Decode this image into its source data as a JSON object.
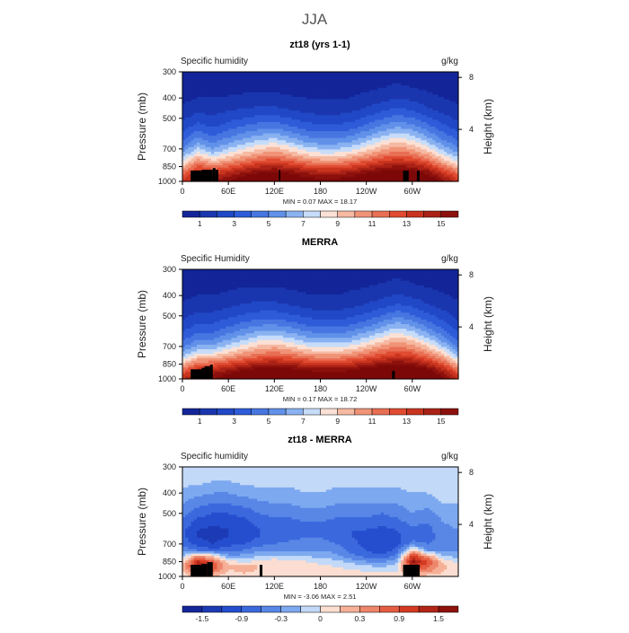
{
  "page_title": "JJA",
  "chart_data": [
    {
      "type": "heatmap",
      "title": "zt18 (yrs 1-1)",
      "left_label": "Specific humidity",
      "units": "g/kg",
      "ylabel": "Pressure (mb)",
      "ylabel_right": "Height (km)",
      "pressure_ticks": [
        "300",
        "400",
        "500",
        "700",
        "850",
        "1000"
      ],
      "height_ticks": [
        "8",
        "4"
      ],
      "lon_ticks": [
        "0",
        "60E",
        "120E",
        "180",
        "120W",
        "60W"
      ],
      "min_text": "MIN =    0.07   MAX =   18.17",
      "colorbar_ticks": [
        "1",
        "3",
        "5",
        "7",
        "9",
        "11",
        "13",
        "15"
      ],
      "colormap": "diverging",
      "range": [
        0,
        16
      ],
      "colorbar_level_count": 16,
      "pressure_levels": [
        300,
        350,
        400,
        450,
        500,
        550,
        600,
        650,
        700,
        750,
        800,
        850,
        900,
        950,
        1000
      ],
      "longitude_knots": [
        0,
        20,
        40,
        60,
        80,
        100,
        120,
        140,
        160,
        180,
        200,
        220,
        240,
        260,
        280,
        300,
        320,
        340,
        360
      ],
      "values": [
        [
          0.3,
          0.3,
          0.3,
          0.4,
          0.4,
          0.4,
          0.4,
          0.3,
          0.3,
          0.3,
          0.3,
          0.3,
          0.4,
          0.5,
          0.6,
          0.5,
          0.4,
          0.4,
          0.3
        ],
        [
          0.5,
          0.5,
          0.6,
          0.6,
          0.7,
          0.7,
          0.7,
          0.6,
          0.5,
          0.5,
          0.5,
          0.6,
          0.7,
          0.9,
          1.1,
          0.9,
          0.7,
          0.6,
          0.5
        ],
        [
          0.8,
          1.0,
          1.0,
          1.1,
          1.2,
          1.3,
          1.3,
          1.1,
          1.0,
          0.9,
          0.9,
          1.0,
          1.3,
          1.6,
          2.0,
          1.7,
          1.3,
          1.0,
          0.8
        ],
        [
          1.2,
          1.6,
          1.5,
          1.8,
          2.0,
          2.2,
          2.2,
          1.9,
          1.6,
          1.5,
          1.5,
          1.7,
          2.1,
          2.6,
          3.1,
          2.8,
          2.1,
          1.6,
          1.2
        ],
        [
          1.8,
          2.5,
          2.2,
          2.6,
          3.0,
          3.3,
          3.4,
          3.0,
          2.5,
          2.3,
          2.3,
          2.6,
          3.2,
          3.9,
          4.5,
          4.1,
          3.2,
          2.4,
          1.8
        ],
        [
          2.5,
          3.5,
          2.9,
          3.6,
          4.1,
          4.6,
          4.8,
          4.2,
          3.6,
          3.3,
          3.3,
          3.6,
          4.4,
          5.3,
          6.0,
          5.5,
          4.4,
          3.3,
          2.5
        ],
        [
          3.3,
          4.6,
          3.8,
          4.6,
          5.3,
          6.0,
          6.3,
          5.5,
          4.8,
          4.4,
          4.4,
          4.8,
          5.7,
          6.7,
          7.5,
          6.9,
          5.7,
          4.3,
          3.3
        ],
        [
          4.2,
          5.8,
          4.8,
          5.8,
          6.6,
          7.4,
          7.8,
          7.0,
          6.1,
          5.6,
          5.6,
          6.1,
          7.1,
          8.2,
          9.0,
          8.4,
          7.0,
          5.4,
          4.2
        ],
        [
          5.2,
          7.2,
          6.0,
          7.1,
          8.0,
          8.9,
          9.4,
          8.6,
          7.6,
          7.0,
          7.0,
          7.6,
          8.6,
          9.7,
          10.5,
          9.9,
          8.5,
          6.6,
          5.2
        ],
        [
          6.4,
          8.8,
          7.5,
          8.6,
          9.6,
          10.5,
          11.0,
          10.2,
          9.2,
          8.6,
          8.6,
          9.2,
          10.2,
          11.3,
          12.0,
          11.5,
          10.1,
          8.0,
          6.4
        ],
        [
          7.8,
          10.6,
          9.2,
          10.3,
          11.3,
          12.2,
          12.7,
          12.0,
          11.0,
          10.4,
          10.4,
          11.0,
          12.0,
          13.0,
          13.6,
          13.2,
          11.8,
          9.6,
          7.8
        ],
        [
          9.4,
          12.4,
          11.0,
          12.1,
          13.1,
          14.0,
          14.4,
          13.8,
          12.9,
          12.3,
          12.3,
          12.9,
          13.8,
          14.7,
          15.2,
          14.9,
          13.6,
          11.4,
          9.4
        ],
        [
          11.0,
          13.8,
          12.8,
          13.8,
          14.8,
          15.6,
          16.0,
          15.5,
          14.7,
          14.1,
          14.1,
          14.7,
          15.5,
          16.3,
          16.8,
          16.5,
          15.3,
          13.1,
          11.0
        ],
        [
          12.4,
          14.6,
          14.2,
          15.2,
          16.2,
          17.0,
          17.4,
          16.9,
          16.1,
          15.6,
          15.6,
          16.1,
          16.9,
          17.6,
          18.0,
          17.8,
          16.6,
          14.6,
          12.4
        ],
        [
          13.4,
          15.0,
          15.0,
          16.0,
          17.0,
          17.8,
          18.0,
          17.6,
          16.9,
          16.4,
          16.4,
          16.9,
          17.6,
          18.1,
          18.2,
          18.1,
          17.4,
          15.5,
          13.4
        ]
      ]
    },
    {
      "type": "heatmap",
      "title": "MERRA",
      "left_label": "Specific Humidity",
      "units": "g/kg",
      "ylabel": "Pressure (mb)",
      "ylabel_right": "Height (km)",
      "pressure_ticks": [
        "300",
        "400",
        "500",
        "700",
        "850",
        "1000"
      ],
      "height_ticks": [
        "8",
        "4"
      ],
      "lon_ticks": [
        "0",
        "60E",
        "120E",
        "180",
        "120W",
        "60W"
      ],
      "min_text": "MIN =    0.17   MAX =   18.72",
      "colorbar_ticks": [
        "1",
        "3",
        "5",
        "7",
        "9",
        "11",
        "13",
        "15"
      ],
      "colormap": "diverging",
      "range": [
        0,
        16
      ],
      "colorbar_level_count": 16,
      "pressure_levels": [
        300,
        350,
        400,
        450,
        500,
        550,
        600,
        650,
        700,
        750,
        800,
        850,
        900,
        950,
        1000
      ],
      "longitude_knots": [
        0,
        20,
        40,
        60,
        80,
        100,
        120,
        140,
        160,
        180,
        200,
        220,
        240,
        260,
        280,
        300,
        320,
        340,
        360
      ],
      "values": [
        [
          0.3,
          0.3,
          0.3,
          0.4,
          0.5,
          0.5,
          0.5,
          0.4,
          0.4,
          0.3,
          0.3,
          0.4,
          0.5,
          0.6,
          0.7,
          0.6,
          0.4,
          0.3,
          0.3
        ],
        [
          0.5,
          0.6,
          0.6,
          0.7,
          0.8,
          0.8,
          0.8,
          0.7,
          0.6,
          0.6,
          0.6,
          0.7,
          0.8,
          1.0,
          1.2,
          1.0,
          0.8,
          0.6,
          0.5
        ],
        [
          0.8,
          1.0,
          1.0,
          1.2,
          1.4,
          1.5,
          1.5,
          1.3,
          1.1,
          1.0,
          1.0,
          1.2,
          1.4,
          1.7,
          2.1,
          1.8,
          1.4,
          1.1,
          0.8
        ],
        [
          1.2,
          1.6,
          1.6,
          1.9,
          2.2,
          2.4,
          2.4,
          2.1,
          1.8,
          1.6,
          1.6,
          1.8,
          2.2,
          2.7,
          3.3,
          2.9,
          2.2,
          1.7,
          1.2
        ],
        [
          1.7,
          2.3,
          2.3,
          2.7,
          3.2,
          3.5,
          3.6,
          3.2,
          2.8,
          2.5,
          2.5,
          2.8,
          3.3,
          4.0,
          4.8,
          4.2,
          3.3,
          2.5,
          1.7
        ],
        [
          2.3,
          3.1,
          3.1,
          3.7,
          4.3,
          4.8,
          5.0,
          4.5,
          3.9,
          3.6,
          3.6,
          3.9,
          4.6,
          5.5,
          6.4,
          5.7,
          4.5,
          3.4,
          2.3
        ],
        [
          3.0,
          4.0,
          4.0,
          4.8,
          5.6,
          6.2,
          6.5,
          5.9,
          5.2,
          4.8,
          4.8,
          5.2,
          6.0,
          7.0,
          8.0,
          7.2,
          5.9,
          4.4,
          3.0
        ],
        [
          3.8,
          5.0,
          5.1,
          6.0,
          6.9,
          7.7,
          8.1,
          7.4,
          6.6,
          6.2,
          6.2,
          6.6,
          7.5,
          8.6,
          9.6,
          8.8,
          7.4,
          5.6,
          3.8
        ],
        [
          4.8,
          6.2,
          6.4,
          7.4,
          8.4,
          9.2,
          9.7,
          9.0,
          8.2,
          7.7,
          7.7,
          8.2,
          9.1,
          10.2,
          11.1,
          10.4,
          9.0,
          7.0,
          4.8
        ],
        [
          6.0,
          7.8,
          8.0,
          9.0,
          10.0,
          10.8,
          11.3,
          10.7,
          9.9,
          9.4,
          9.4,
          9.9,
          10.8,
          11.8,
          12.6,
          12.0,
          10.6,
          8.6,
          6.0
        ],
        [
          7.6,
          9.8,
          9.9,
          10.9,
          11.8,
          12.6,
          13.0,
          12.5,
          11.8,
          11.3,
          11.3,
          11.8,
          12.6,
          13.5,
          14.1,
          13.7,
          12.4,
          10.4,
          7.6
        ],
        [
          9.4,
          11.8,
          11.9,
          12.9,
          13.8,
          14.6,
          15.0,
          14.5,
          13.8,
          13.3,
          13.3,
          13.8,
          14.6,
          15.4,
          15.9,
          15.6,
          14.3,
          12.3,
          9.4
        ],
        [
          11.2,
          13.6,
          13.8,
          14.8,
          15.7,
          16.5,
          16.9,
          16.4,
          15.7,
          15.3,
          15.3,
          15.7,
          16.5,
          17.2,
          17.6,
          17.4,
          16.1,
          14.1,
          11.2
        ],
        [
          12.8,
          14.8,
          15.2,
          16.2,
          17.1,
          17.8,
          18.1,
          17.7,
          17.1,
          16.7,
          16.7,
          17.1,
          17.8,
          18.3,
          18.5,
          18.4,
          17.3,
          15.4,
          12.8
        ],
        [
          13.8,
          15.4,
          16.0,
          17.0,
          17.9,
          18.4,
          18.6,
          18.3,
          17.8,
          17.5,
          17.5,
          17.8,
          18.4,
          18.7,
          18.7,
          18.7,
          17.9,
          16.2,
          13.8
        ]
      ]
    },
    {
      "type": "heatmap",
      "title": "zt18 - MERRA",
      "left_label": "Specific humidity",
      "units": "g/kg",
      "ylabel": "Pressure (mb)",
      "ylabel_right": "Height (km)",
      "pressure_ticks": [
        "300",
        "400",
        "500",
        "700",
        "850",
        "1000"
      ],
      "height_ticks": [
        "8",
        "4"
      ],
      "lon_ticks": [
        "0",
        "60E",
        "120E",
        "180",
        "120W",
        "60W"
      ],
      "min_text": "MIN =   -3.06   MAX =    2.51",
      "colorbar_ticks": [
        "-1.5",
        "-0.9",
        "-0.3",
        "0",
        "0.3",
        "0.9",
        "1.5"
      ],
      "colormap": "diverging",
      "range": [
        -2.1,
        2.1
      ],
      "colorbar_level_count": 14,
      "pressure_levels": [
        300,
        350,
        400,
        450,
        500,
        550,
        600,
        650,
        700,
        750,
        800,
        850,
        900,
        950,
        1000
      ],
      "longitude_knots": [
        0,
        20,
        40,
        60,
        80,
        100,
        120,
        140,
        160,
        180,
        200,
        220,
        240,
        260,
        280,
        300,
        320,
        340,
        360
      ],
      "values": [
        [
          -0.1,
          -0.1,
          -0.1,
          -0.1,
          -0.1,
          -0.1,
          -0.1,
          -0.1,
          0.0,
          0.0,
          -0.1,
          -0.1,
          -0.1,
          -0.1,
          -0.1,
          0.0,
          -0.1,
          0.0,
          0.0
        ],
        [
          -0.2,
          -0.2,
          -0.3,
          -0.3,
          -0.2,
          -0.2,
          -0.2,
          -0.2,
          -0.1,
          -0.1,
          -0.2,
          -0.2,
          -0.2,
          -0.2,
          -0.2,
          -0.1,
          -0.2,
          -0.1,
          -0.1
        ],
        [
          -0.4,
          -0.5,
          -0.6,
          -0.6,
          -0.5,
          -0.4,
          -0.4,
          -0.4,
          -0.3,
          -0.3,
          -0.4,
          -0.4,
          -0.4,
          -0.4,
          -0.4,
          -0.3,
          -0.3,
          -0.2,
          -0.2
        ],
        [
          -0.6,
          -0.8,
          -0.9,
          -0.9,
          -0.8,
          -0.7,
          -0.6,
          -0.6,
          -0.5,
          -0.5,
          -0.6,
          -0.6,
          -0.6,
          -0.6,
          -0.6,
          -0.5,
          -0.5,
          -0.3,
          -0.3
        ],
        [
          -0.8,
          -1.1,
          -1.2,
          -1.2,
          -1.1,
          -0.9,
          -0.8,
          -0.8,
          -0.7,
          -0.7,
          -0.8,
          -0.8,
          -0.8,
          -0.9,
          -0.8,
          -0.6,
          -0.7,
          -0.5,
          -0.4
        ],
        [
          -1.0,
          -1.3,
          -1.4,
          -1.4,
          -1.3,
          -1.1,
          -1.0,
          -1.0,
          -0.9,
          -0.9,
          -1.0,
          -1.0,
          -1.0,
          -1.1,
          -1.0,
          -0.8,
          -0.9,
          -0.6,
          -0.5
        ],
        [
          -1.1,
          -1.5,
          -1.6,
          -1.5,
          -1.4,
          -1.2,
          -1.1,
          -1.1,
          -1.0,
          -1.0,
          -1.1,
          -1.2,
          -1.2,
          -1.3,
          -1.2,
          -1.0,
          -1.0,
          -0.7,
          -0.6
        ],
        [
          -1.1,
          -1.5,
          -1.6,
          -1.5,
          -1.4,
          -1.2,
          -1.1,
          -1.0,
          -0.9,
          -0.9,
          -1.0,
          -1.2,
          -1.3,
          -1.4,
          -1.3,
          -1.0,
          -1.0,
          -0.8,
          -0.7
        ],
        [
          -1.0,
          -1.3,
          -1.5,
          -1.3,
          -1.2,
          -1.0,
          -0.9,
          -0.8,
          -0.8,
          -0.8,
          -0.9,
          -1.1,
          -1.3,
          -1.5,
          -1.3,
          -0.8,
          -0.9,
          -0.8,
          -0.7
        ],
        [
          -0.7,
          -0.9,
          -1.1,
          -1.0,
          -0.9,
          -0.7,
          -0.6,
          -0.6,
          -0.6,
          -0.6,
          -0.7,
          -1.0,
          -1.2,
          -1.4,
          -1.1,
          0.3,
          -0.6,
          -0.6,
          -0.6
        ],
        [
          -0.3,
          0.6,
          0.3,
          -0.5,
          -0.5,
          -0.3,
          -0.2,
          -0.3,
          -0.3,
          -0.4,
          -0.5,
          -0.8,
          -1.0,
          -1.1,
          -0.8,
          1.4,
          0.6,
          -0.3,
          -0.4
        ],
        [
          0.1,
          1.6,
          1.0,
          0.1,
          -0.1,
          0.1,
          0.2,
          0.1,
          0.0,
          -0.1,
          -0.2,
          -0.4,
          -0.6,
          -0.7,
          -0.4,
          1.9,
          1.2,
          0.2,
          -0.1
        ],
        [
          0.3,
          1.8,
          1.2,
          0.4,
          0.6,
          0.3,
          0.3,
          0.3,
          0.2,
          0.1,
          0.0,
          -0.1,
          -0.2,
          -0.3,
          -0.1,
          1.4,
          1.0,
          0.4,
          0.1
        ],
        [
          0.2,
          1.2,
          0.8,
          0.2,
          0.4,
          0.2,
          0.2,
          0.2,
          0.2,
          0.1,
          0.1,
          0.1,
          0.0,
          0.0,
          0.0,
          0.8,
          0.6,
          0.3,
          0.1
        ],
        [
          0.1,
          0.5,
          0.3,
          0.1,
          0.1,
          0.1,
          0.1,
          0.1,
          0.1,
          0.1,
          0.1,
          0.1,
          0.1,
          0.1,
          0.1,
          0.3,
          0.2,
          0.1,
          0.1
        ]
      ]
    }
  ]
}
